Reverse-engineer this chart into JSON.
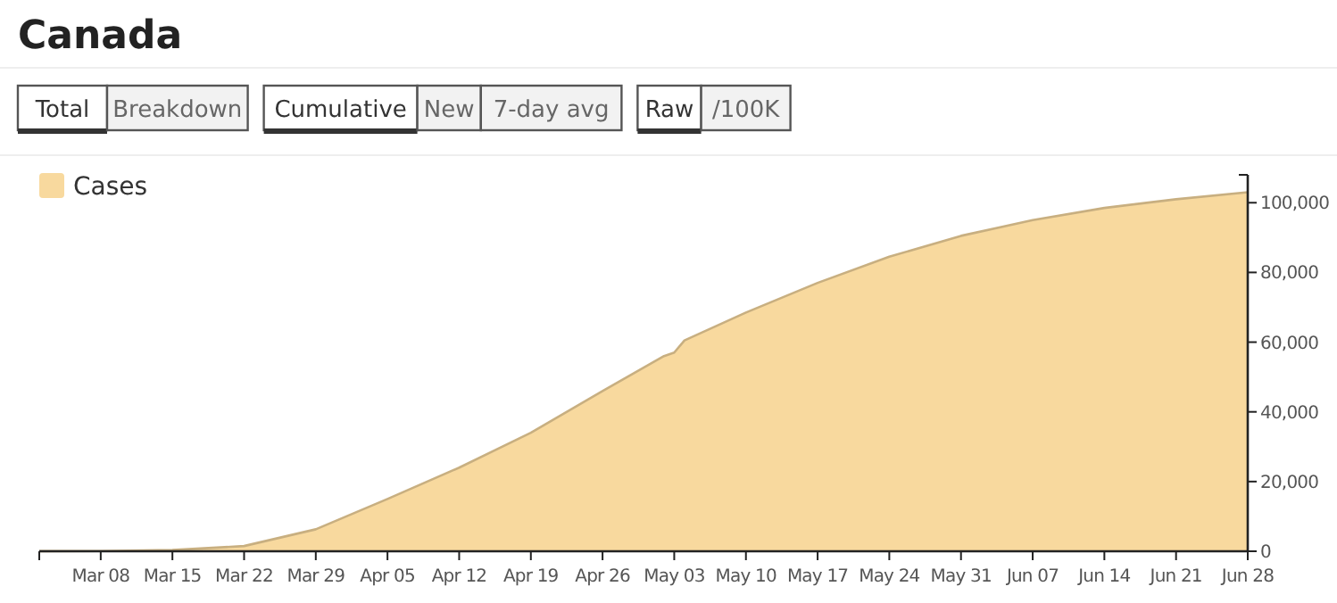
{
  "chart_data": {
    "type": "area",
    "title": "Canada",
    "annotations": [
      "Total",
      "Breakdown",
      "Cumulative",
      "New",
      "7-day avg",
      "Raw",
      "/100K"
    ],
    "x": [
      "--03-02",
      "--03-08",
      "--03-15",
      "--03-22",
      "--03-29",
      "--04-05",
      "--04-12",
      "--04-19",
      "--04-26",
      "--05-02",
      "--05-03",
      "--05-04",
      "--05-10",
      "--05-17",
      "--05-24",
      "--05-31",
      "--06-07",
      "--06-14",
      "--06-21",
      "--06-28"
    ],
    "series": [
      {
        "name": "Cases",
        "color": "#f8d99e",
        "values": [
          30,
          64,
          340,
          1500,
          6300,
          15000,
          24000,
          34000,
          46000,
          56000,
          57000,
          60500,
          68500,
          77000,
          84500,
          90500,
          95000,
          98500,
          101000,
          103000
        ]
      }
    ],
    "xlim": [
      "--03-02",
      "--06-28"
    ],
    "xticks": [
      {
        "value": "--03-08",
        "label": "Mar 08"
      },
      {
        "value": "--03-15",
        "label": "Mar 15"
      },
      {
        "value": "--03-22",
        "label": "Mar 22"
      },
      {
        "value": "--03-29",
        "label": "Mar 29"
      },
      {
        "value": "--04-05",
        "label": "Apr 05"
      },
      {
        "value": "--04-12",
        "label": "Apr 12"
      },
      {
        "value": "--04-19",
        "label": "Apr 19"
      },
      {
        "value": "--04-26",
        "label": "Apr 26"
      },
      {
        "value": "--05-03",
        "label": "May 03"
      },
      {
        "value": "--05-10",
        "label": "May 10"
      },
      {
        "value": "--05-17",
        "label": "May 17"
      },
      {
        "value": "--05-24",
        "label": "May 24"
      },
      {
        "value": "--05-31",
        "label": "May 31"
      },
      {
        "value": "--06-07",
        "label": "Jun 07"
      },
      {
        "value": "--06-14",
        "label": "Jun 14"
      },
      {
        "value": "--06-21",
        "label": "Jun 21"
      },
      {
        "value": "--06-28",
        "label": "Jun 28"
      }
    ],
    "ylim": [
      0,
      108000
    ],
    "yticks": [
      0,
      {
        "value": 20000,
        "label": "20,000"
      },
      {
        "value": 40000,
        "label": "40,000"
      },
      {
        "value": 60000,
        "label": "60,000"
      },
      {
        "value": 80000,
        "label": "80,000"
      },
      {
        "value": 100000,
        "label": "100,000"
      }
    ],
    "legend": "top left",
    "grid": false
  }
}
